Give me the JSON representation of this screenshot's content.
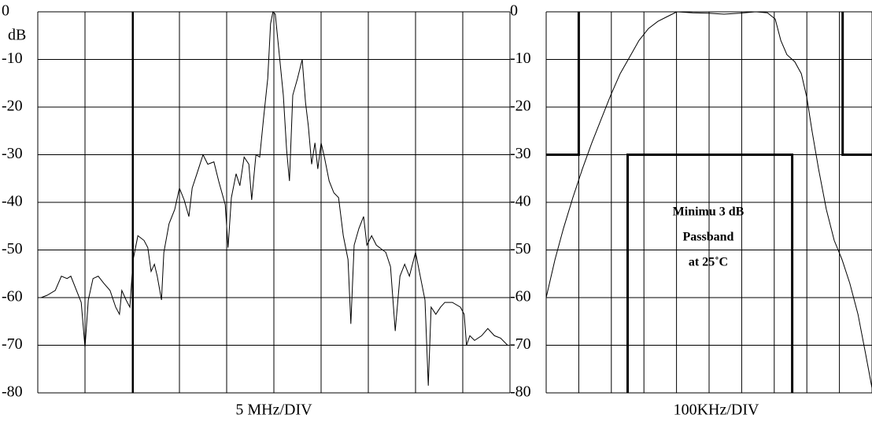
{
  "chart_data": [
    {
      "type": "line",
      "ylabel": "dB",
      "xlabel": "5 MHz/DIV",
      "xlim": [
        0,
        10
      ],
      "xticks": [
        0,
        1,
        2,
        3,
        4,
        5,
        6,
        7,
        8,
        9,
        10
      ],
      "ylim": [
        -80,
        0
      ],
      "yticks": [
        0,
        -10,
        -20,
        -30,
        -40,
        -50,
        -60,
        -70,
        -80
      ],
      "grid": true,
      "series": [
        {
          "color": "#000000",
          "linewidth": 1,
          "x": [
            0.07,
            0.2,
            0.37,
            0.5,
            0.62,
            0.7,
            0.82,
            0.92,
            1.0,
            1.07,
            1.17,
            1.28,
            1.4,
            1.53,
            1.65,
            1.73,
            1.78,
            1.87,
            1.95,
            2.02,
            2.12,
            2.25,
            2.33,
            2.4,
            2.47,
            2.53,
            2.62,
            2.67,
            2.78,
            2.9,
            3.0,
            3.1,
            3.2,
            3.27,
            3.37,
            3.5,
            3.6,
            3.73,
            3.83,
            3.97,
            4.03,
            4.1,
            4.2,
            4.28,
            4.37,
            4.47,
            4.53,
            4.62,
            4.7,
            4.78,
            4.87,
            4.93,
            4.98,
            5.03,
            5.1,
            5.2,
            5.27,
            5.33,
            5.4,
            5.5,
            5.6,
            5.67,
            5.73,
            5.8,
            5.87,
            5.93,
            6.0,
            6.07,
            6.17,
            6.27,
            6.37,
            6.47,
            6.57,
            6.63,
            6.7,
            6.8,
            6.9,
            6.97,
            7.07,
            7.17,
            7.37,
            7.47,
            7.57,
            7.67,
            7.77,
            7.87,
            8.0,
            8.1,
            8.2,
            8.27,
            8.33,
            8.43,
            8.53,
            8.62,
            8.78,
            8.95,
            9.03,
            9.08,
            9.15,
            9.25,
            9.4,
            9.53,
            9.67,
            9.8,
            9.95
          ],
          "values": [
            -60,
            -59.5,
            -58.5,
            -55.5,
            -56,
            -55.5,
            -58.5,
            -61,
            -70.5,
            -60.5,
            -56,
            -55.5,
            -57,
            -58.5,
            -62,
            -63.5,
            -58.5,
            -60.5,
            -62,
            -52,
            -47,
            -48,
            -49.5,
            -54.5,
            -53,
            -55.5,
            -60.5,
            -50.5,
            -44.5,
            -41.5,
            -37,
            -39.5,
            -43,
            -37,
            -34,
            -30,
            -32,
            -31.5,
            -35.5,
            -40.5,
            -49.5,
            -39,
            -34,
            -36.5,
            -30.5,
            -32,
            -39.5,
            -30,
            -30.5,
            -22.5,
            -14,
            -2.5,
            0,
            -0.5,
            -7.5,
            -17.5,
            -29,
            -35.5,
            -17.5,
            -14,
            -10,
            -19,
            -24,
            -32,
            -27.5,
            -33,
            -27.5,
            -30.5,
            -35.5,
            -38,
            -39,
            -47,
            -52,
            -65.5,
            -49,
            -45.5,
            -43,
            -49,
            -47,
            -49,
            -50.5,
            -53.5,
            -67,
            -55.5,
            -53,
            -55.5,
            -50.5,
            -55.5,
            -60.5,
            -78.5,
            -62,
            -63.5,
            -62,
            -61,
            -61,
            -62,
            -63.5,
            -70,
            -68,
            -69,
            -68,
            -66.5,
            -68,
            -68.5,
            -70
          ]
        }
      ]
    },
    {
      "type": "line",
      "xlabel": "100KHz/DIV",
      "xlim": [
        0,
        10
      ],
      "xticks": [
        0,
        1,
        2,
        3,
        4,
        5,
        6,
        7,
        8,
        9,
        10
      ],
      "ylim": [
        -80,
        0
      ],
      "yticks": [
        0,
        -10,
        -20,
        -30,
        -40,
        -50,
        -60,
        -70,
        -80
      ],
      "grid": true,
      "annotations": [
        "Minimu 3 dB",
        "Passband",
        "at 25˚C"
      ],
      "series": [
        {
          "color": "#000000",
          "linewidth": 1,
          "x": [
            0,
            0.27,
            0.53,
            0.82,
            1.11,
            1.4,
            1.69,
            1.98,
            2.27,
            2.56,
            2.85,
            3.14,
            3.43,
            3.72,
            4.01,
            4.49,
            4.98,
            5.46,
            5.94,
            6.43,
            6.79,
            7.03,
            7.2,
            7.39,
            7.63,
            7.83,
            8.0,
            8.16,
            8.36,
            8.6,
            8.84,
            9.08,
            9.32,
            9.57,
            9.81,
            10
          ],
          "values": [
            -60,
            -52,
            -45.5,
            -39,
            -33,
            -27.5,
            -22.5,
            -17.5,
            -13,
            -9.5,
            -6,
            -3.5,
            -2,
            -1,
            0,
            -0.2,
            -0.3,
            -0.5,
            -0.3,
            0,
            -0.2,
            -1.5,
            -6,
            -9,
            -10.5,
            -13,
            -18,
            -25,
            -33,
            -41.5,
            -48,
            -52,
            -57,
            -63.5,
            -72,
            -79
          ]
        },
        {
          "color": "#000000",
          "linewidth": 3,
          "x": [
            0,
            1,
            1,
            null,
            2.5,
            2.5,
            7.55,
            7.55,
            null,
            9.1,
            9.1,
            10
          ],
          "values": [
            -30,
            -30,
            0,
            null,
            -80,
            -30,
            -30,
            -80,
            null,
            0,
            -30,
            -30
          ]
        }
      ]
    }
  ]
}
